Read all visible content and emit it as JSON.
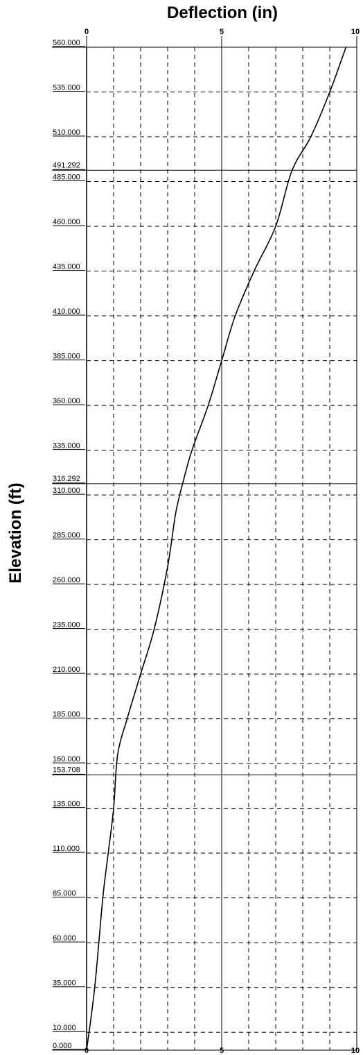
{
  "chart_data": {
    "type": "line",
    "title": "Deflection (in)",
    "xlabel": "Deflection (in)",
    "ylabel": "Elevation (ft)",
    "xlim": [
      0,
      10
    ],
    "ylim": [
      0,
      560
    ],
    "x_ticks": [
      "0",
      "5",
      "10"
    ],
    "y_ticks": [
      "560.000",
      "535.000",
      "510.000",
      "491.292",
      "485.000",
      "460.000",
      "435.000",
      "410.000",
      "385.000",
      "360.000",
      "335.000",
      "316.292",
      "310.000",
      "285.000",
      "260.000",
      "235.000",
      "210.000",
      "185.000",
      "160.000",
      "153.708",
      "135.000",
      "110.000",
      "85.000",
      "60.000",
      "35.000",
      "10.000",
      "0.000"
    ],
    "section_boundaries": [
      491.292,
      316.292,
      153.708
    ],
    "grid": true,
    "series": [
      {
        "x": [
          0,
          0.3,
          0.6,
          0.8,
          1.0,
          1.15,
          1.5,
          2.0,
          2.5,
          3.0,
          3.3,
          3.55,
          3.9,
          4.5,
          5.0,
          5.5,
          6.2,
          7.0,
          7.6,
          8.3,
          9.0,
          9.6
        ],
        "y": [
          0,
          35,
          85,
          110,
          135,
          165,
          185,
          210,
          235,
          270,
          300,
          316,
          335,
          360,
          385,
          410,
          435,
          460,
          491,
          510,
          535,
          560
        ]
      }
    ],
    "colors": {
      "curve": "#000000",
      "grid": "#000000",
      "axis": "#000000"
    }
  }
}
